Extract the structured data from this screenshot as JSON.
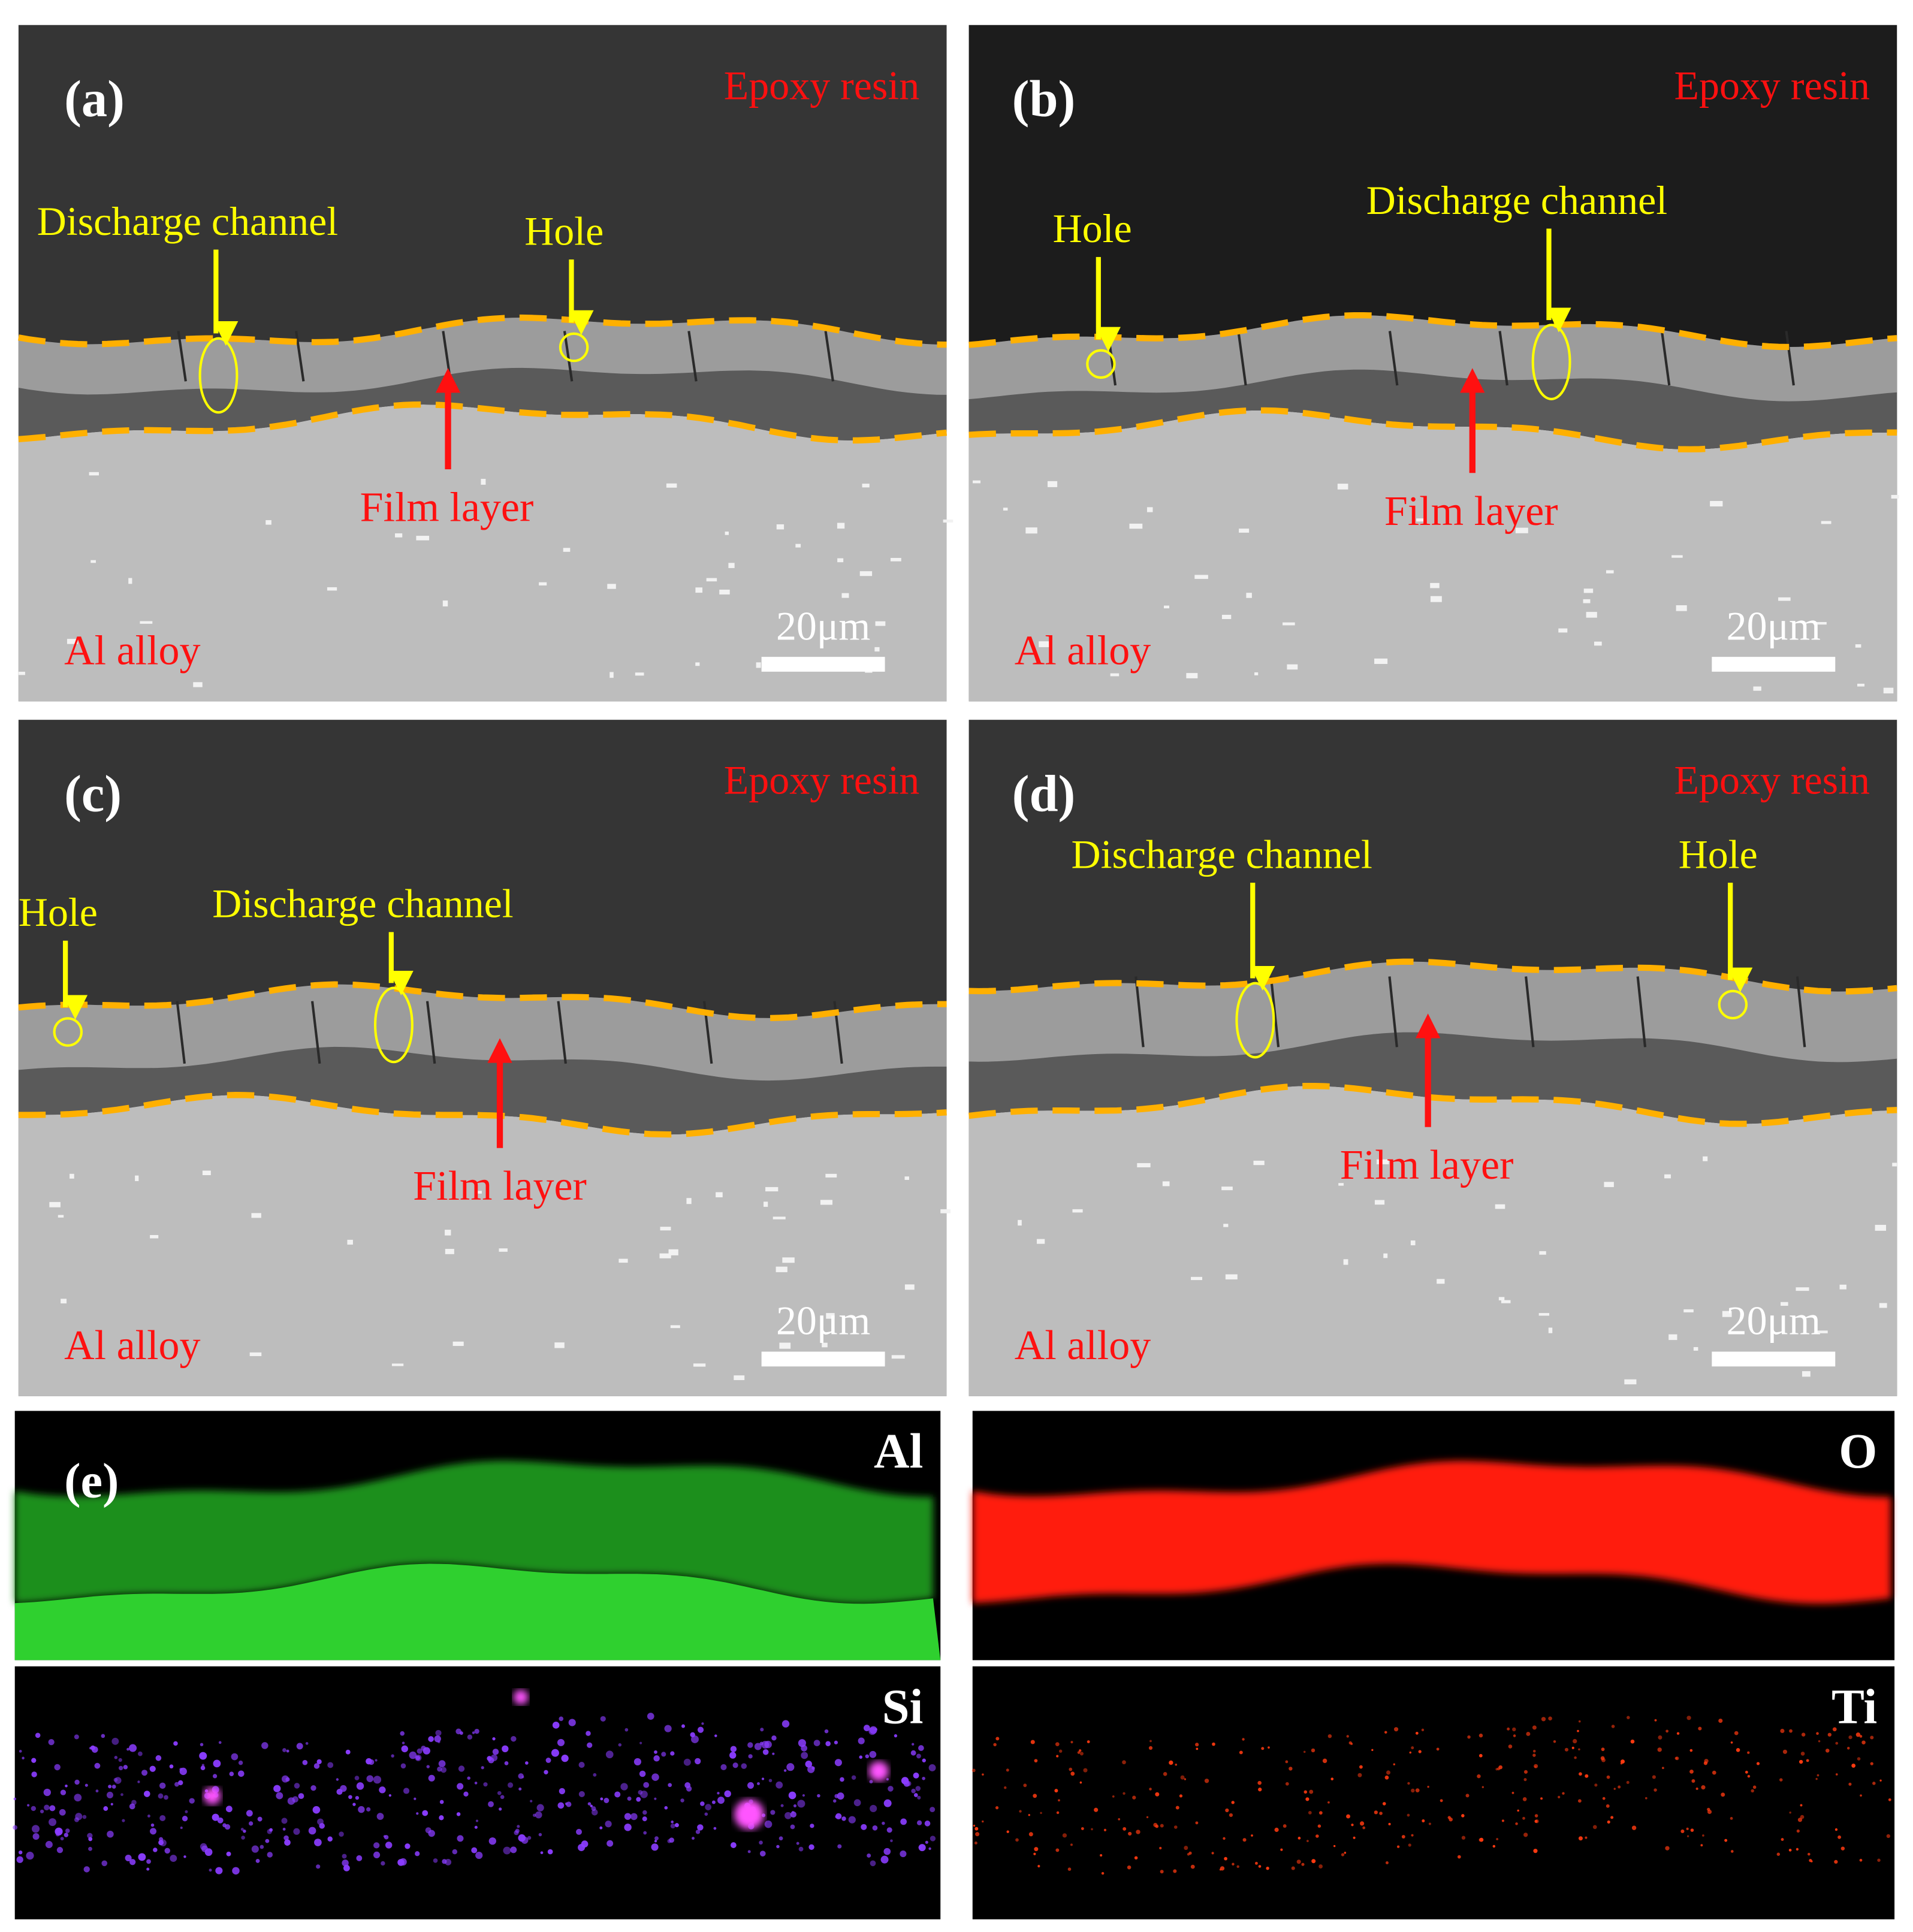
{
  "panels": [
    {
      "label": "(a)",
      "matrix": "Epoxy resin",
      "channel": "Discharge channel",
      "hole": "Hole",
      "film": "Film layer",
      "substrate": "Al alloy",
      "scale_bar": "20μm"
    },
    {
      "label": "(b)",
      "matrix": "Epoxy resin",
      "channel": "Discharge channel",
      "hole": "Hole",
      "film": "Film layer",
      "substrate": "Al alloy",
      "scale_bar": "20μm"
    },
    {
      "label": "(c)",
      "matrix": "Epoxy resin",
      "channel": "Discharge channel",
      "hole": "Hole",
      "film": "Film layer",
      "substrate": "Al alloy",
      "scale_bar": "20μm"
    },
    {
      "label": "(d)",
      "matrix": "Epoxy resin",
      "channel": "Discharge channel",
      "hole": "Hole",
      "film": "Film layer",
      "substrate": "Al alloy",
      "scale_bar": "20μm"
    }
  ],
  "eds": {
    "label": "(e)",
    "maps": [
      "Al",
      "O",
      "Si",
      "Ti"
    ]
  }
}
